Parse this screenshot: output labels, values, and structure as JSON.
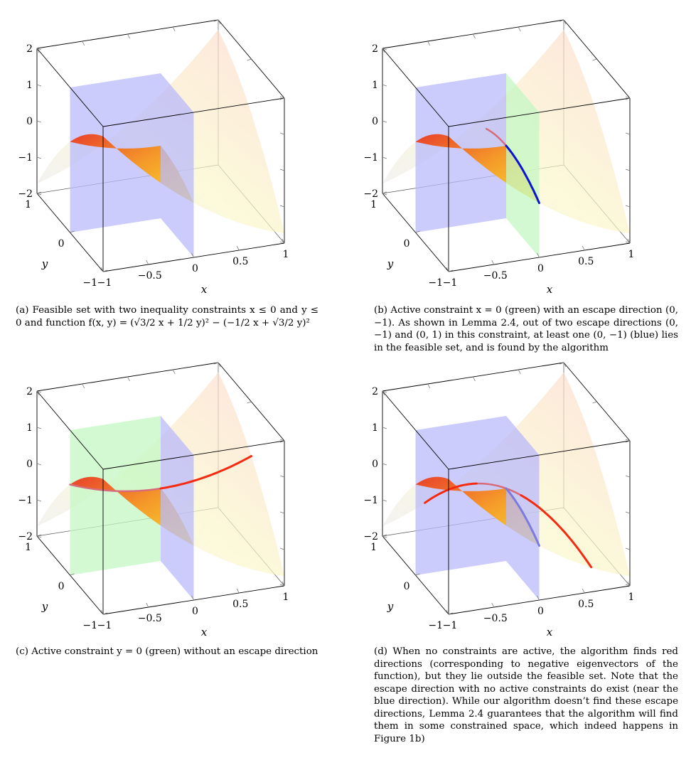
{
  "panels": [
    {
      "id": "a",
      "z_ticks": [
        "2",
        "1",
        "0",
        "−1",
        "−2"
      ],
      "y_ticks": [
        "1",
        "0",
        "−1"
      ],
      "x_ticks": [
        "−1",
        "−0.5",
        "0",
        "0.5",
        "1"
      ],
      "x_label": "x",
      "y_label": "y",
      "caption": "(a) Feasible set with two inequality constraints x ≤ 0 and y ≤ 0 and function f(x, y) = (√3/2 x + 1/2 y)² − (−1/2 x + √3/2 y)²",
      "colors": {
        "plane_left": "#b9b9fb",
        "plane_right": "#b9b9fb"
      }
    },
    {
      "id": "b",
      "z_ticks": [
        "2",
        "1",
        "0",
        "−1",
        "−2"
      ],
      "y_ticks": [
        "1",
        "0",
        "−1"
      ],
      "x_ticks": [
        "−1",
        "−0.5",
        "0",
        "0.5",
        "1"
      ],
      "x_label": "x",
      "y_label": "y",
      "caption": "(b) Active constraint x = 0 (green) with an escape direction (0, −1). As shown in Lemma 2.4, out of two escape directions (0, −1) and (0, 1) in this constraint, at least one (0, −1) (blue) lies in the feasible set, and is found by the algorithm",
      "colors": {
        "plane_left": "#b9b9fb",
        "plane_right": "#c4f7c4"
      }
    },
    {
      "id": "c",
      "z_ticks": [
        "2",
        "1",
        "0",
        "−1",
        "−2"
      ],
      "y_ticks": [
        "1",
        "0",
        "−1"
      ],
      "x_ticks": [
        "−1",
        "−0.5",
        "0",
        "0.5",
        "1"
      ],
      "x_label": "x",
      "y_label": "y",
      "caption": "(c) Active constraint y = 0 (green) without an escape direction",
      "colors": {
        "plane_left": "#c4f7c4",
        "plane_right": "#b9b9fb"
      }
    },
    {
      "id": "d",
      "z_ticks": [
        "2",
        "1",
        "0",
        "−1",
        "−2"
      ],
      "y_ticks": [
        "1",
        "0",
        "−1"
      ],
      "x_ticks": [
        "−1",
        "−0.5",
        "0",
        "0.5",
        "1"
      ],
      "x_label": "x",
      "y_label": "y",
      "caption": "(d) When no constraints are active, the algorithm finds red directions (corresponding to negative eigenvectors of the function), but they lie outside the feasible set. Note that the escape direction with no active constraints do exist (near the blue direction). While our algorithm doesn’t find these escape directions, Lemma 2.4 guarantees that the algorithm will find them in some constrained space, which indeed happens in Figure 1b)",
      "colors": {
        "plane_left": "#b9b9fb",
        "plane_right": "#b9b9fb"
      }
    }
  ]
}
